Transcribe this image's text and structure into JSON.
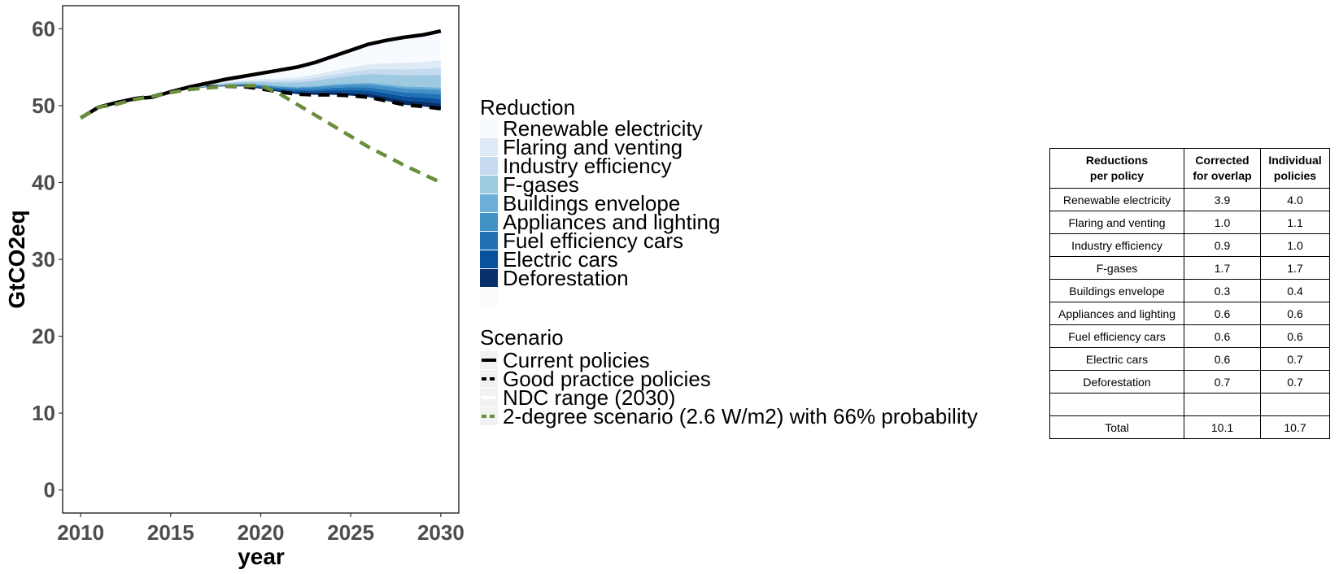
{
  "chart_data": {
    "type": "area",
    "xlabel": "year",
    "ylabel": "GtCO2eq",
    "xlim": [
      2009,
      2031
    ],
    "ylim": [
      -3,
      63
    ],
    "xticks": [
      2010,
      2015,
      2020,
      2025,
      2030
    ],
    "yticks": [
      0,
      10,
      20,
      30,
      40,
      50,
      60
    ],
    "grid": false,
    "legend_placement": "right",
    "x": [
      2010,
      2011,
      2012,
      2013,
      2014,
      2015,
      2016,
      2017,
      2018,
      2019,
      2020,
      2021,
      2022,
      2023,
      2024,
      2025,
      2026,
      2027,
      2028,
      2029,
      2030
    ],
    "scenarios": [
      {
        "name": "Current policies",
        "color": "#000000",
        "dash": "solid",
        "values": [
          48.4,
          49.8,
          50.4,
          50.9,
          51.1,
          51.8,
          52.4,
          52.9,
          53.4,
          53.8,
          54.2,
          54.6,
          55.0,
          55.6,
          56.4,
          57.2,
          58.0,
          58.5,
          58.9,
          59.2,
          59.7
        ]
      },
      {
        "name": "Good practice policies",
        "color": "#000000",
        "dash": "dashed",
        "values": [
          48.4,
          49.8,
          50.2,
          50.9,
          51.2,
          51.8,
          52.1,
          52.4,
          52.5,
          52.5,
          52.2,
          51.8,
          51.5,
          51.4,
          51.4,
          51.3,
          51.1,
          50.6,
          50.1,
          49.9,
          49.6
        ]
      },
      {
        "name": "NDC range (2030)",
        "color": "#ffffff",
        "dash": "solid",
        "values": []
      },
      {
        "name": "2-degree scenario (2.6 W/m2) with 66% probability",
        "color": "#6b8e3d",
        "dash": "dashed",
        "values": [
          48.4,
          49.8,
          50.2,
          50.8,
          51.2,
          51.7,
          52.1,
          52.3,
          52.5,
          52.6,
          52.6,
          51.6,
          50.2,
          48.8,
          47.4,
          46.0,
          44.6,
          43.4,
          42.2,
          41.1,
          40.0
        ]
      }
    ],
    "reductions": [
      {
        "name": "Renewable electricity",
        "color": "#f7fbff",
        "value_2030": 3.9
      },
      {
        "name": "Flaring and venting",
        "color": "#deebf7",
        "value_2030": 1.0
      },
      {
        "name": "Industry efficiency",
        "color": "#c6dbef",
        "value_2030": 0.9
      },
      {
        "name": "F-gases",
        "color": "#9ecae1",
        "value_2030": 1.7
      },
      {
        "name": "Buildings envelope",
        "color": "#6baed6",
        "value_2030": 0.3
      },
      {
        "name": "Appliances and lighting",
        "color": "#4292c6",
        "value_2030": 0.6
      },
      {
        "name": "Fuel efficiency cars",
        "color": "#2171b5",
        "value_2030": 0.6
      },
      {
        "name": "Electric cars",
        "color": "#08519c",
        "value_2030": 0.6
      },
      {
        "name": "Deforestation",
        "color": "#08306b",
        "value_2030": 0.7
      }
    ]
  },
  "legend": {
    "reduction_title": "Reduction",
    "scenario_title": "Scenario"
  },
  "table": {
    "headers": [
      [
        "Reductions",
        "per policy"
      ],
      [
        "Corrected",
        "for overlap"
      ],
      [
        "Individual",
        "policies"
      ]
    ],
    "rows": [
      [
        "Renewable electricity",
        "3.9",
        "4.0"
      ],
      [
        "Flaring and venting",
        "1.0",
        "1.1"
      ],
      [
        "Industry efficiency",
        "0.9",
        "1.0"
      ],
      [
        "F-gases",
        "1.7",
        "1.7"
      ],
      [
        "Buildings envelope",
        "0.3",
        "0.4"
      ],
      [
        "Appliances and lighting",
        "0.6",
        "0.6"
      ],
      [
        "Fuel efficiency cars",
        "0.6",
        "0.6"
      ],
      [
        "Electric cars",
        "0.6",
        "0.7"
      ],
      [
        "Deforestation",
        "0.7",
        "0.7"
      ],
      [
        "",
        "",
        ""
      ],
      [
        "Total",
        "10.1",
        "10.7"
      ]
    ]
  }
}
